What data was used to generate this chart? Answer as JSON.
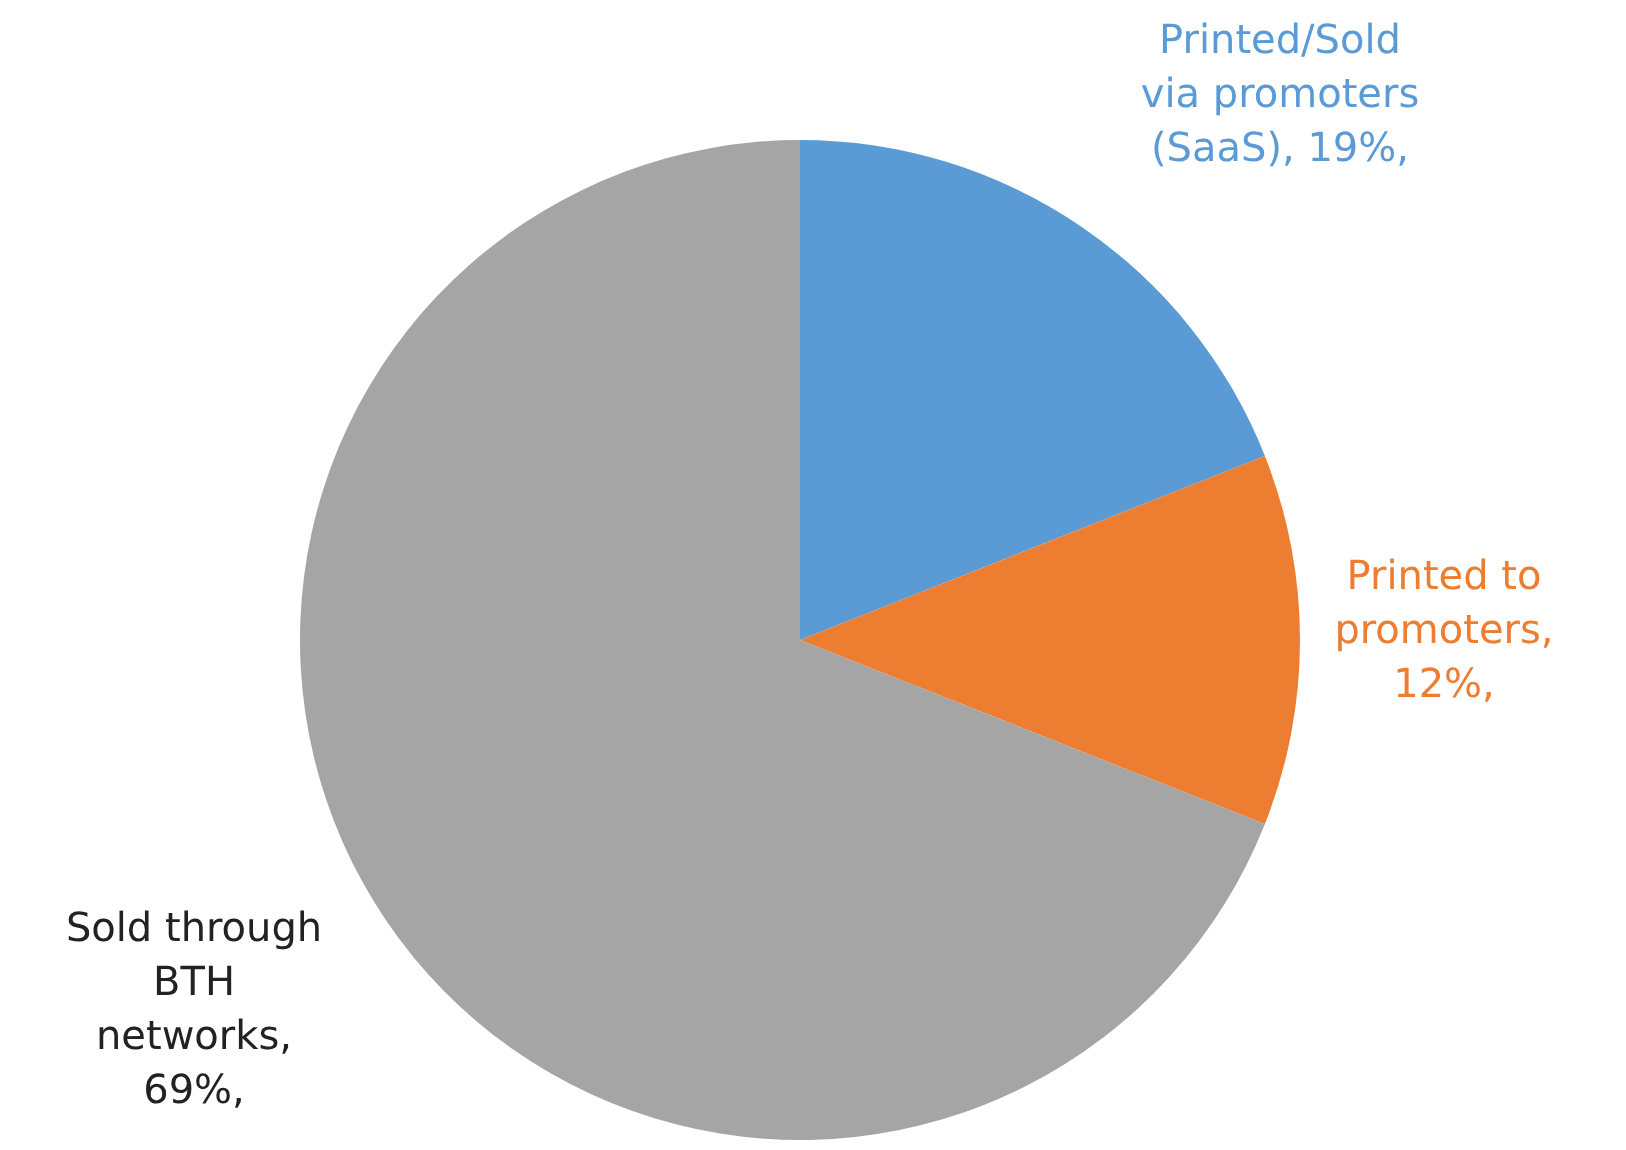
{
  "chart_data": {
    "type": "pie",
    "categories": [
      "Printed/Sold via promoters (SaaS)",
      "Printed to promoters",
      "Sold through BTH networks"
    ],
    "values": [
      19,
      12,
      69
    ],
    "colors": [
      "#5b9bd5",
      "#ed7d31",
      "#a5a5a5"
    ],
    "value_labels": [
      ", 19%,",
      ", 12%,",
      ", 69%,"
    ],
    "legend": false
  }
}
